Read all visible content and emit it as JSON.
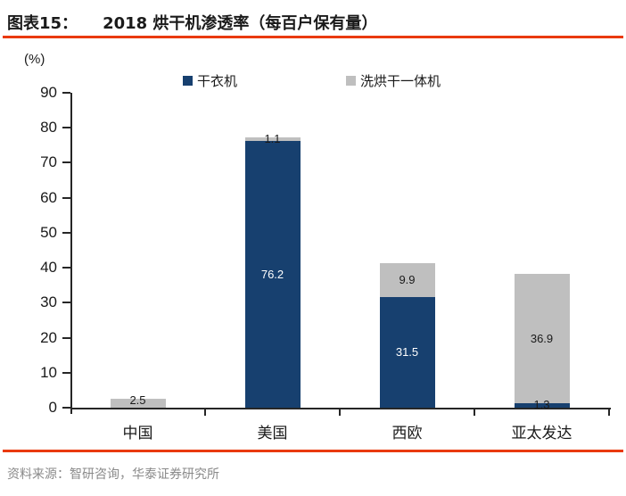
{
  "header": {
    "figure_label": "图表15：",
    "title": "2018 烘干机渗透率（每百户保有量）"
  },
  "chart_data": {
    "type": "bar",
    "stacked": true,
    "unit_label": "(%)",
    "categories": [
      "中国",
      "美国",
      "西欧",
      "亚太发达"
    ],
    "series": [
      {
        "name": "干衣机",
        "color": "#17406F",
        "values": [
          0,
          76.2,
          31.5,
          1.3
        ]
      },
      {
        "name": "洗烘干一体机",
        "color": "#BFBFBF",
        "values": [
          2.5,
          1.1,
          9.9,
          36.9
        ]
      }
    ],
    "totals": [
      2.5,
      77.3,
      41.4,
      38.2
    ],
    "ylim": [
      0,
      90
    ],
    "ytick_step": 10,
    "yticks": [
      0,
      10,
      20,
      30,
      40,
      50,
      60,
      70,
      80,
      90
    ],
    "grid": false,
    "legend_position": "top",
    "data_labels": true
  },
  "footer": {
    "source": "资料来源：智研咨询，华泰证券研究所"
  },
  "colors": {
    "accent_red": "#E93A0C",
    "bar_blue": "#17406F",
    "bar_gray": "#BFBFBF",
    "label_dark": "#1a1a1a",
    "label_light": "#ffffff",
    "axis": "#262626",
    "source_gray": "#8a8a8a"
  }
}
